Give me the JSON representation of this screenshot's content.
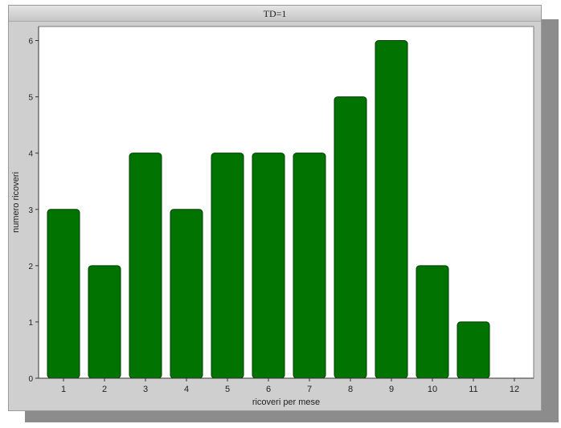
{
  "chart_data": {
    "type": "bar",
    "title": "TD=1",
    "xlabel": "ricoveri per mese",
    "ylabel": "numero ricoveri",
    "categories": [
      "1",
      "2",
      "3",
      "4",
      "5",
      "6",
      "7",
      "8",
      "9",
      "10",
      "11",
      "12"
    ],
    "values": [
      3,
      2,
      4,
      3,
      4,
      4,
      4,
      5,
      6,
      2,
      1,
      0
    ],
    "yticks": [
      "0",
      "1",
      "2",
      "3",
      "4",
      "5",
      "6"
    ],
    "ylim": [
      0,
      6.25
    ],
    "grid": false,
    "legend": "none",
    "colors": {
      "bar": "#007300",
      "bar_edge": "#003d00",
      "plot_background": "#ffffff",
      "panel_background": "#cfcfcf"
    }
  }
}
